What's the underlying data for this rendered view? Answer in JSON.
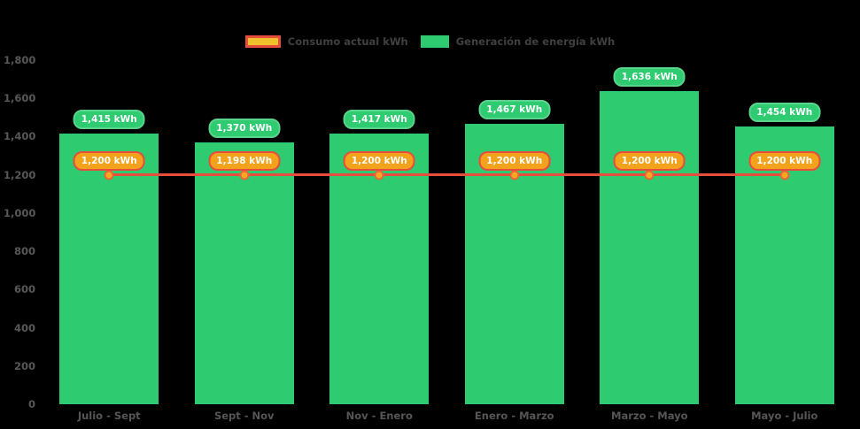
{
  "legend": {
    "items": [
      {
        "label": "Consumo actual kWh",
        "swatch": "line-swatch"
      },
      {
        "label": "Generación de energía kWh",
        "swatch": "bar-swatch"
      }
    ]
  },
  "colors": {
    "background": "#000000",
    "bar_green": "#2ecb71",
    "bar_pill_border": "#5ad48c",
    "line_red": "#e74c3c",
    "dot_fill": "#f6a81f",
    "dot_border": "#e8643c",
    "line_pill_fill": "#f3a21c",
    "line_pill_border": "#e74c3c",
    "axis_text": "#585858",
    "legend_text": "#404040",
    "pill_text": "#ffffff"
  },
  "chart_data": {
    "type": "bar",
    "subtype": "bar-line-combo",
    "categories": [
      "Julio - Sept",
      "Sept - Nov",
      "Nov - Enero",
      "Enero - Marzo",
      "Marzo - Mayo",
      "Mayo - Julio"
    ],
    "series": [
      {
        "name": "Generación de energía kWh",
        "type": "bar",
        "values": [
          1415,
          1370,
          1417,
          1467,
          1636,
          1454
        ],
        "labels": [
          "1,415 kWh",
          "1,370 kWh",
          "1,417 kWh",
          "1,467 kWh",
          "1,636 kWh",
          "1,454 kWh"
        ],
        "color": "#2ecb71"
      },
      {
        "name": "Consumo actual kWh",
        "type": "line",
        "values": [
          1200,
          1198,
          1200,
          1200,
          1200,
          1200
        ],
        "labels": [
          "1,200 kWh",
          "1,198 kWh",
          "1,200 kWh",
          "1,200 kWh",
          "1,200 kWh",
          "1,200 kWh"
        ],
        "color": "#e74c3c"
      }
    ],
    "title": "",
    "xlabel": "",
    "ylabel": "",
    "ylim": [
      0,
      1800
    ],
    "ytick_step": 200,
    "ytick_labels": [
      "0",
      "200",
      "400",
      "600",
      "800",
      "1,000",
      "1,200",
      "1,400",
      "1,600",
      "1,800"
    ],
    "grid": false,
    "legend_position": "top"
  }
}
